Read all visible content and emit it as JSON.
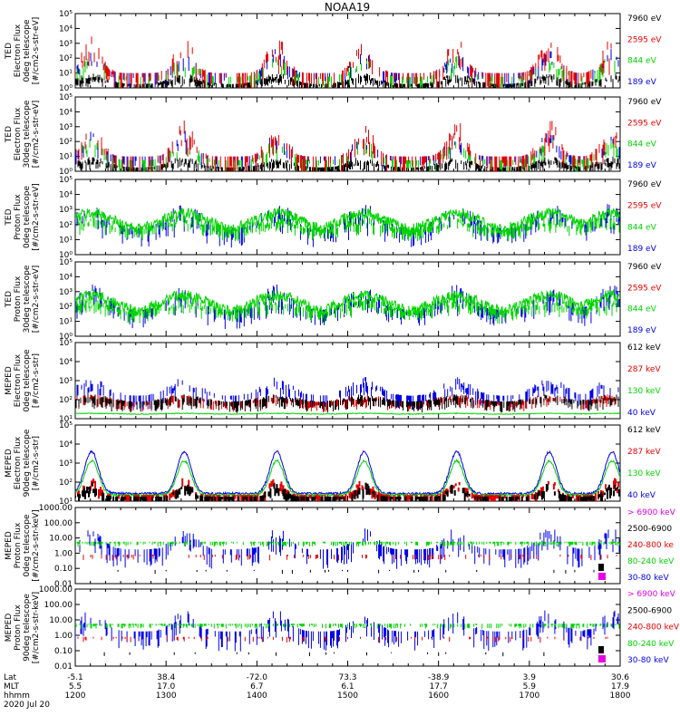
{
  "title": "NOAA19",
  "panels": [
    {
      "ylabel": [
        "TED",
        "Electron Flux",
        "0deg telescope",
        "[#/cm2-s-str-eV]"
      ],
      "ticks": [
        "10⁰",
        "10¹",
        "10²",
        "10³",
        "10⁴",
        "10⁵"
      ],
      "legend": [
        {
          "text": "7960 eV",
          "color": "#000000"
        },
        {
          "text": "2595 eV",
          "color": "#e60000"
        },
        {
          "text": "844 eV",
          "color": "#00d400"
        },
        {
          "text": "189 eV",
          "color": "#0000e6"
        }
      ]
    },
    {
      "ylabel": [
        "TED",
        "Electron Flux",
        "30deg telescope",
        "[#/cm2-s-str-eV]"
      ],
      "ticks": [
        "10⁰",
        "10¹",
        "10²",
        "10³",
        "10⁴",
        "10⁵"
      ],
      "legend": [
        {
          "text": "7960 eV",
          "color": "#000000"
        },
        {
          "text": "2595 eV",
          "color": "#e60000"
        },
        {
          "text": "844 eV",
          "color": "#00d400"
        },
        {
          "text": "189 eV",
          "color": "#0000e6"
        }
      ]
    },
    {
      "ylabel": [
        "TED",
        "Proton Flux",
        "0deg telescope",
        "[#/cm2-s-str-eV]"
      ],
      "ticks": [
        "10⁰",
        "10¹",
        "10²",
        "10³",
        "10⁴",
        "10⁵"
      ],
      "legend": [
        {
          "text": "7960 eV",
          "color": "#000000"
        },
        {
          "text": "2595 eV",
          "color": "#e60000"
        },
        {
          "text": "844 eV",
          "color": "#00d400"
        },
        {
          "text": "189 eV",
          "color": "#0000e6"
        }
      ]
    },
    {
      "ylabel": [
        "TED",
        "Proton Flux",
        "30deg telescope",
        "[#/cm2-s-str-eV]"
      ],
      "ticks": [
        "10⁰",
        "10¹",
        "10²",
        "10³",
        "10⁴",
        "10⁵"
      ],
      "legend": [
        {
          "text": "7960 eV",
          "color": "#000000"
        },
        {
          "text": "2595 eV",
          "color": "#e60000"
        },
        {
          "text": "844 eV",
          "color": "#00d400"
        },
        {
          "text": "189 eV",
          "color": "#0000e6"
        }
      ]
    },
    {
      "ylabel": [
        "MEPED",
        "Electron Flux",
        "0deg telescope",
        "[#/cm2-s-str]"
      ],
      "ticks": [
        "10¹",
        "10²",
        "10³",
        "10⁴",
        "10⁵"
      ],
      "legend": [
        {
          "text": "612 keV",
          "color": "#000000"
        },
        {
          "text": "287 keV",
          "color": "#e60000"
        },
        {
          "text": "130 keV",
          "color": "#00d400"
        },
        {
          "text": "40 keV",
          "color": "#0000e6"
        }
      ]
    },
    {
      "ylabel": [
        "MEPED",
        "Electron Flux",
        "90deg telescope",
        "[#/cm2-s-str]"
      ],
      "ticks": [
        "10¹",
        "10²",
        "10³",
        "10⁴",
        "10⁵"
      ],
      "legend": [
        {
          "text": "612 keV",
          "color": "#000000"
        },
        {
          "text": "287 keV",
          "color": "#e60000"
        },
        {
          "text": "130 keV",
          "color": "#00d400"
        },
        {
          "text": "40 keV",
          "color": "#0000e6"
        }
      ]
    },
    {
      "ylabel": [
        "MEPED",
        "Proton Flux",
        "0deg telescope",
        "[#/cm2-s-str-keV]"
      ],
      "ticks": [
        "0.01",
        "0.10",
        "1.00",
        "10.00",
        "100.00",
        "1000.00"
      ],
      "legend": [
        {
          "text": "> 6900 keV",
          "color": "#e600e6"
        },
        {
          "text": "2500-6900",
          "color": "#000000"
        },
        {
          "text": "240-800 ke",
          "color": "#e60000"
        },
        {
          "text": "80-240 keV",
          "color": "#00d400"
        },
        {
          "text": "30-80 keV",
          "color": "#0000e6"
        }
      ]
    },
    {
      "ylabel": [
        "MEPED",
        "Proton Flux",
        "90deg telescope",
        "[#/cm2-s-str-keV]"
      ],
      "ticks": [
        "0.01",
        "0.10",
        "1.00",
        "10.00",
        "100.00",
        "1000.00"
      ],
      "legend": [
        {
          "text": "> 6900 keV",
          "color": "#e600e6"
        },
        {
          "text": "2500-6900",
          "color": "#000000"
        },
        {
          "text": "240-800 keV",
          "color": "#e60000"
        },
        {
          "text": "80-240 keV",
          "color": "#00d400"
        },
        {
          "text": "30-80 keV",
          "color": "#0000e6"
        }
      ]
    }
  ],
  "footer": {
    "row_labels": [
      "Lat",
      "MLT",
      "hhmm"
    ],
    "date": "2020 Jul 20",
    "lat": [
      "-5.1",
      "38.4",
      "-72.0",
      "73.3",
      "-38.9",
      "3.9",
      "30.6"
    ],
    "mlt": [
      "5.5",
      "17.0",
      "6.7",
      "6.1",
      "17.7",
      "5.9",
      "17.9"
    ],
    "hhmm": [
      "1200",
      "1300",
      "1400",
      "1500",
      "1600",
      "1700",
      "1800"
    ]
  },
  "chart_data": {
    "type": "line",
    "title": "NOAA19",
    "x_range": [
      "1200",
      "1800"
    ],
    "x_ticks": [
      "1200",
      "1300",
      "1400",
      "1500",
      "1600",
      "1700",
      "1800"
    ],
    "y_scale": "log",
    "panels": [
      {
        "name": "TED Electron Flux 0deg telescope",
        "ylim": [
          1,
          100000
        ],
        "series": [
          "7960 eV",
          "2595 eV",
          "844 eV",
          "189 eV"
        ]
      },
      {
        "name": "TED Electron Flux 30deg telescope",
        "ylim": [
          1,
          100000
        ],
        "series": [
          "7960 eV",
          "2595 eV",
          "844 eV",
          "189 eV"
        ]
      },
      {
        "name": "TED Proton Flux 0deg telescope",
        "ylim": [
          1,
          100000
        ],
        "series": [
          "7960 eV",
          "2595 eV",
          "844 eV",
          "189 eV"
        ]
      },
      {
        "name": "TED Proton Flux 30deg telescope",
        "ylim": [
          1,
          100000
        ],
        "series": [
          "7960 eV",
          "2595 eV",
          "844 eV",
          "189 eV"
        ]
      },
      {
        "name": "MEPED Electron Flux 0deg telescope",
        "ylim": [
          10,
          100000
        ],
        "series": [
          "612 keV",
          "287 keV",
          "130 keV",
          "40 keV"
        ]
      },
      {
        "name": "MEPED Electron Flux 90deg telescope",
        "ylim": [
          10,
          100000
        ],
        "series": [
          "612 keV",
          "287 keV",
          "130 keV",
          "40 keV"
        ]
      },
      {
        "name": "MEPED Proton Flux 0deg telescope",
        "ylim": [
          0.01,
          1000
        ],
        "series": [
          "> 6900 keV",
          "2500-6900",
          "240-800 ke",
          "80-240 keV",
          "30-80 keV"
        ]
      },
      {
        "name": "MEPED Proton Flux 90deg telescope",
        "ylim": [
          0.01,
          1000
        ],
        "series": [
          "> 6900 keV",
          "2500-6900",
          "240-800 keV",
          "80-240 keV",
          "30-80 keV"
        ]
      }
    ],
    "colors": {
      "black": "#000000",
      "red": "#e60000",
      "green": "#00d400",
      "blue": "#0000e6",
      "magenta": "#e600e6"
    }
  }
}
